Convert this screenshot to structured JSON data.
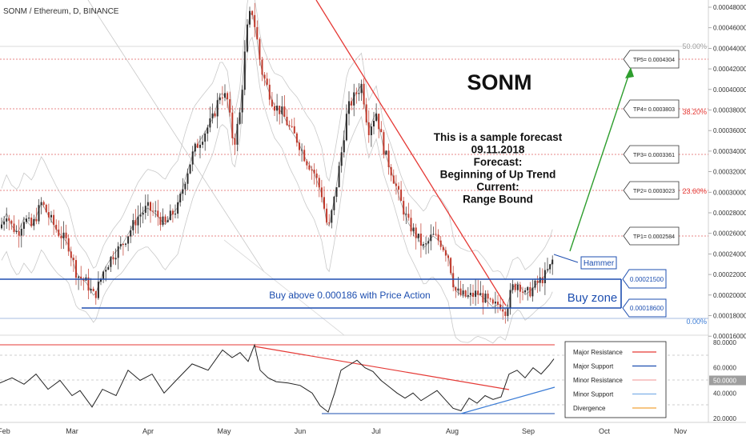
{
  "header": {
    "symbol": "SONM / Ethereum, D, BINANCE"
  },
  "annotations": {
    "title": "SONM",
    "forecast_lines": [
      "This is a sample forecast",
      "09.11.2018",
      "Forecast:",
      "Beginning of Up Trend",
      "Current:",
      "Range Bound"
    ],
    "buy_above": "Buy above 0.000186 with Price Action",
    "buy_zone": "Buy zone",
    "hammer": "Hammer",
    "buy_zone_top": "0.00021500",
    "buy_zone_bottom": "0.00018600"
  },
  "targets": [
    {
      "label": "TP5= 0.0004304",
      "value": 0.0004304
    },
    {
      "label": "TP4= 0.0003803",
      "value": 0.0003803
    },
    {
      "label": "TP3= 0.0003361",
      "value": 0.0003361
    },
    {
      "label": "TP2= 0.0003023",
      "value": 0.0003023
    },
    {
      "label": "TP1= 0.0002584",
      "value": 0.0002584
    }
  ],
  "fib_levels": [
    {
      "label": "50.00%",
      "value": 0.00043
    },
    {
      "label": "38.20%",
      "value": 0.00038
    },
    {
      "label": "23.60%",
      "value": 0.000302
    },
    {
      "label": "0.00%",
      "value": 0.000177
    }
  ],
  "price_axis": {
    "ticks": [
      "0.00048000",
      "0.00046000",
      "0.00044000",
      "0.00042000",
      "0.00040000",
      "0.00038000",
      "0.00036000",
      "0.00034000",
      "0.00032000",
      "0.00030000",
      "0.00028000",
      "0.00026000",
      "0.00024000",
      "0.00022000",
      "0.00020000",
      "0.00018000",
      "0.00016000"
    ]
  },
  "osc_axis": {
    "ticks": [
      "80.0000",
      "60.0000",
      "50.0000",
      "40.0000",
      "20.0000"
    ],
    "highlight": "50.0000"
  },
  "time_axis": {
    "labels": [
      "Feb",
      "Mar",
      "Apr",
      "May",
      "Jun",
      "Jul",
      "Aug",
      "Sep",
      "Oct",
      "Nov"
    ]
  },
  "legend": {
    "items": [
      {
        "label": "Major Resistance",
        "color": "#e53935"
      },
      {
        "label": "Major Support",
        "color": "#1e4fb0"
      },
      {
        "label": "Minor Resistance",
        "color": "#f4a8a8"
      },
      {
        "label": "Minor Support",
        "color": "#7fb0e8"
      },
      {
        "label": "Divergence",
        "color": "#f2a33a"
      }
    ]
  },
  "colors": {
    "bull": "#2b2b2b",
    "bear": "#c0392b",
    "resistance": "#e53935",
    "support": "#1e4fb0",
    "target_arrow": "#2e9e2e",
    "grid_dash": "#e06060"
  },
  "chart_data": {
    "type": "candlestick",
    "symbol": "SONM/ETH",
    "timeframe": "D",
    "exchange": "BINANCE",
    "price_range": [
      0.00016,
      0.00049
    ],
    "oscillator_range": [
      20,
      80
    ],
    "buy_zone": [
      0.000186,
      0.000215
    ],
    "price_path": [
      [
        0,
        0.000265
      ],
      [
        8,
        0.00028
      ],
      [
        14,
        0.000268
      ],
      [
        22,
        0.00026
      ],
      [
        30,
        0.000275
      ],
      [
        40,
        0.000266
      ],
      [
        52,
        0.00029
      ],
      [
        62,
        0.000275
      ],
      [
        72,
        0.000262
      ],
      [
        85,
        0.00025
      ],
      [
        96,
        0.00022
      ],
      [
        108,
        0.000212
      ],
      [
        118,
        0.000198
      ],
      [
        130,
        0.000225
      ],
      [
        142,
        0.00024
      ],
      [
        152,
        0.000248
      ],
      [
        162,
        0.000262
      ],
      [
        172,
        0.000276
      ],
      [
        184,
        0.000285
      ],
      [
        196,
        0.000278
      ],
      [
        206,
        0.000268
      ],
      [
        214,
        0.000278
      ],
      [
        222,
        0.000285
      ],
      [
        232,
        0.000315
      ],
      [
        242,
        0.00034
      ],
      [
        254,
        0.000356
      ],
      [
        266,
        0.000372
      ],
      [
        276,
        0.000398
      ],
      [
        284,
        0.00039
      ],
      [
        292,
        0.000345
      ],
      [
        300,
        0.000378
      ],
      [
        308,
        0.000455
      ],
      [
        314,
        0.00048
      ],
      [
        320,
        0.000455
      ],
      [
        326,
        0.00042
      ],
      [
        334,
        0.000402
      ],
      [
        342,
        0.000385
      ],
      [
        352,
        0.000378
      ],
      [
        362,
        0.000362
      ],
      [
        372,
        0.00035
      ],
      [
        382,
        0.000332
      ],
      [
        392,
        0.00032
      ],
      [
        402,
        0.000298
      ],
      [
        410,
        0.000262
      ],
      [
        418,
        0.000295
      ],
      [
        426,
        0.000335
      ],
      [
        434,
        0.00038
      ],
      [
        444,
        0.000395
      ],
      [
        452,
        0.000405
      ],
      [
        460,
        0.00036
      ],
      [
        470,
        0.000378
      ],
      [
        480,
        0.00034
      ],
      [
        490,
        0.000318
      ],
      [
        500,
        0.000292
      ],
      [
        510,
        0.00027
      ],
      [
        520,
        0.000258
      ],
      [
        530,
        0.000245
      ],
      [
        540,
        0.000258
      ],
      [
        550,
        0.000252
      ],
      [
        560,
        0.000238
      ],
      [
        568,
        0.000205
      ],
      [
        576,
        0.0002
      ],
      [
        586,
        0.000198
      ],
      [
        596,
        0.000202
      ],
      [
        606,
        0.000196
      ],
      [
        616,
        0.000188
      ],
      [
        624,
        0.000192
      ],
      [
        632,
        0.000185
      ],
      [
        640,
        0.000207
      ],
      [
        648,
        0.000212
      ],
      [
        656,
        0.0002
      ],
      [
        664,
        0.000205
      ],
      [
        672,
        0.000212
      ],
      [
        680,
        0.000218
      ],
      [
        688,
        0.000228
      ],
      [
        692,
        0.000238
      ]
    ],
    "oscillator_path": [
      [
        0,
        48
      ],
      [
        15,
        52
      ],
      [
        30,
        47
      ],
      [
        45,
        55
      ],
      [
        60,
        43
      ],
      [
        75,
        50
      ],
      [
        90,
        38
      ],
      [
        100,
        42
      ],
      [
        115,
        29
      ],
      [
        128,
        43
      ],
      [
        145,
        38
      ],
      [
        160,
        58
      ],
      [
        175,
        50
      ],
      [
        190,
        55
      ],
      [
        205,
        40
      ],
      [
        220,
        50
      ],
      [
        240,
        63
      ],
      [
        260,
        58
      ],
      [
        278,
        74
      ],
      [
        290,
        68
      ],
      [
        300,
        72
      ],
      [
        310,
        65
      ],
      [
        318,
        78
      ],
      [
        325,
        58
      ],
      [
        335,
        52
      ],
      [
        345,
        49
      ],
      [
        360,
        48
      ],
      [
        375,
        46
      ],
      [
        390,
        40
      ],
      [
        400,
        30
      ],
      [
        410,
        25
      ],
      [
        418,
        40
      ],
      [
        426,
        58
      ],
      [
        436,
        62
      ],
      [
        446,
        66
      ],
      [
        456,
        60
      ],
      [
        466,
        57
      ],
      [
        476,
        50
      ],
      [
        486,
        45
      ],
      [
        496,
        40
      ],
      [
        506,
        36
      ],
      [
        516,
        40
      ],
      [
        526,
        34
      ],
      [
        536,
        38
      ],
      [
        546,
        42
      ],
      [
        556,
        35
      ],
      [
        566,
        28
      ],
      [
        576,
        26
      ],
      [
        586,
        36
      ],
      [
        596,
        32
      ],
      [
        606,
        38
      ],
      [
        616,
        35
      ],
      [
        626,
        37
      ],
      [
        636,
        55
      ],
      [
        646,
        58
      ],
      [
        656,
        52
      ],
      [
        666,
        60
      ],
      [
        676,
        55
      ],
      [
        686,
        62
      ],
      [
        692,
        67
      ]
    ]
  }
}
